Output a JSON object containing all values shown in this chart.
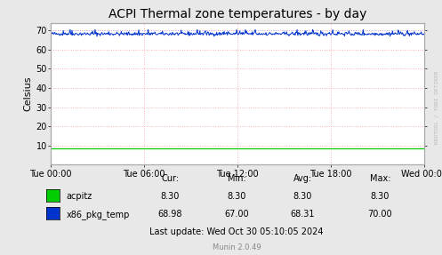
{
  "title": "ACPI Thermal zone temperatures - by day",
  "ylabel": "Celsius",
  "bg_color": "#e8e8e8",
  "plot_bg_color": "#ffffff",
  "ylim": [
    0,
    74
  ],
  "yticks": [
    10,
    20,
    30,
    40,
    50,
    60,
    70
  ],
  "xtick_labels": [
    "Tue 00:00",
    "Tue 06:00",
    "Tue 12:00",
    "Tue 18:00",
    "Wed 00:00"
  ],
  "acpitz_value": 8.3,
  "x86_pkg_mean": 68.31,
  "x86_pkg_min": 67.0,
  "x86_pkg_max": 70.0,
  "acpitz_color": "#00cc00",
  "x86_pkg_color": "#0033cc",
  "legend": [
    {
      "label": "acpitz",
      "color": "#00cc00",
      "cur": "8.30",
      "min": "8.30",
      "avg": "8.30",
      "max": "8.30"
    },
    {
      "label": "x86_pkg_temp",
      "color": "#0033cc",
      "cur": "68.98",
      "min": "67.00",
      "avg": "68.31",
      "max": "70.00"
    }
  ],
  "footer": "Last update: Wed Oct 30 05:10:05 2024",
  "munin_version": "Munin 2.0.49",
  "watermark": "RRDTOOL / TOBI OETIKER",
  "num_points": 600
}
